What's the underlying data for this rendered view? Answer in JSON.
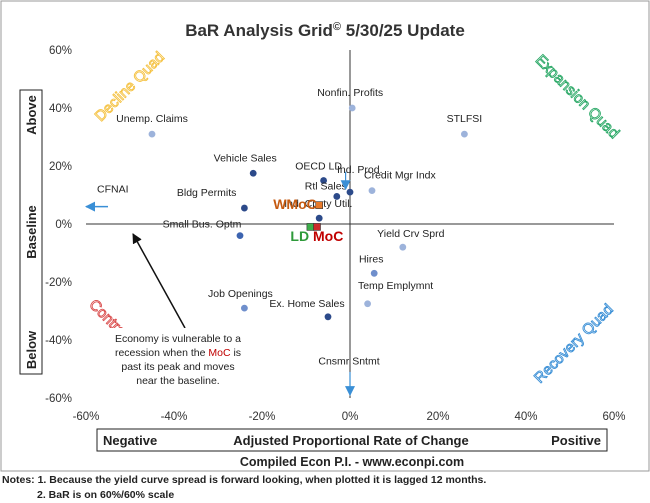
{
  "chart_data": {
    "type": "scatter",
    "title": "BaR Analysis Grid",
    "title_mark": "©",
    "title_date": "5/30/25 Update",
    "xlabel": "Adjusted Proportional Rate of Change",
    "xlabel_left": "Negative",
    "xlabel_right": "Positive",
    "ylabel_above": "Above",
    "ylabel_center": "Baseline",
    "ylabel_below": "Below",
    "xlim": [
      -60,
      60
    ],
    "ylim": [
      -60,
      60
    ],
    "x_ticks": [
      -60,
      -40,
      -20,
      0,
      20,
      40,
      60
    ],
    "y_ticks": [
      -60,
      -40,
      -20,
      0,
      20,
      40,
      60
    ],
    "tick_suffix": "%",
    "grid": false,
    "quadrants": {
      "top_left": {
        "label": "Decline Quad",
        "color": "#f5c242"
      },
      "top_right": {
        "label": "Expansion Quad",
        "color": "#2aa866"
      },
      "bottom_left": {
        "label": "Contraction Quad",
        "color": "#d94a4a"
      },
      "bottom_right": {
        "label": "Recovery Quad",
        "color": "#3a8fd6"
      }
    },
    "points": [
      {
        "name": "Nonfin. Profits",
        "x": 0.5,
        "y": 40,
        "color": "#9db3db"
      },
      {
        "name": "Unemp. Claims",
        "x": -45,
        "y": 31,
        "color": "#9db3db"
      },
      {
        "name": "STLFSI",
        "x": 26,
        "y": 31,
        "color": "#9db3db"
      },
      {
        "name": "Vehicle Sales",
        "x": -22,
        "y": 17.5,
        "color": "#2c4a8a"
      },
      {
        "name": "OECD LD",
        "x": -6,
        "y": 15,
        "color": "#2c4a8a"
      },
      {
        "name": "Ind. Prod.",
        "x": 0,
        "y": 11,
        "color": "#2c4a8a"
      },
      {
        "name": "Credit Mgr Indx",
        "x": 5,
        "y": 11.5,
        "color": "#9db3db"
      },
      {
        "name": "Rtl Sales",
        "x": -3,
        "y": 9.5,
        "color": "#2c4a8a"
      },
      {
        "name": "Bldg Permits",
        "x": -24,
        "y": 5.5,
        "color": "#2c4a8a"
      },
      {
        "name": "Ind. Cpcty Util.",
        "x": -7,
        "y": 2,
        "color": "#2c4a8a"
      },
      {
        "name": "Small Bus. Optm",
        "x": -25,
        "y": -4,
        "color": "#3d64b0"
      },
      {
        "name": "Yield Crv Sprd",
        "x": 12,
        "y": -8,
        "color": "#9db3db"
      },
      {
        "name": "Hires",
        "x": 5.5,
        "y": -17,
        "color": "#6f8fcc"
      },
      {
        "name": "Temp Emplymnt",
        "x": 4,
        "y": -27.5,
        "color": "#9db3db"
      },
      {
        "name": "Job Openings",
        "x": -24,
        "y": -29,
        "color": "#6f8fcc"
      },
      {
        "name": "Ex. Home Sales",
        "x": -5,
        "y": -32,
        "color": "#2c4a8a"
      },
      {
        "name": "Cnsmr Sntmt",
        "x": 0,
        "y": -60,
        "color": "#9db3db"
      },
      {
        "name": "CFNAI",
        "x": -60,
        "y": 6,
        "color": "#3a8fd6"
      }
    ],
    "markers": [
      {
        "name": "WMoC",
        "x": -7,
        "y": 6.5,
        "color": "#e87a2a",
        "label_color": "#c55a11"
      },
      {
        "name": "LD",
        "x": -9,
        "y": -1,
        "color": "#3dae4a",
        "label_color": "#2e9a3a"
      },
      {
        "name": "MoC",
        "x": -7.5,
        "y": -1,
        "color": "#cc2a2a",
        "label_color": "#c00000"
      }
    ],
    "annotation": {
      "line1": "Economy is vulnerable to a",
      "line2_pre": "recession when the ",
      "line2_hl": "MoC",
      "line2_post": " is",
      "line3": "past its peak and moves",
      "line4": "near the baseline.",
      "hl_color": "#c00000"
    }
  },
  "footer": {
    "source": "Compiled Econ P.I. - www.econpi.com",
    "note1": "Notes: 1. Because the yield curve spread is forward looking, when plotted it is lagged 12 months.",
    "note2": "2. BaR is on 60%/60% scale"
  }
}
